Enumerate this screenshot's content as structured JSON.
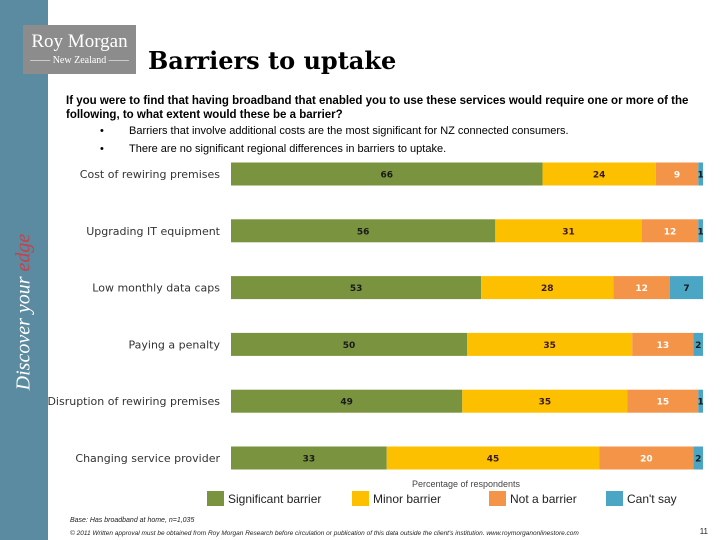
{
  "sidebar": {
    "tagline_prefix": "Discover your ",
    "tagline_highlight": "edge"
  },
  "logo": {
    "line1": "Roy Morgan",
    "line2": "New Zealand"
  },
  "title": "Barriers to uptake",
  "question": "If you were to find that having broadband that enabled you to use these services would require one or more of the following, to what extent would these be a barrier?",
  "bullets": [
    "Barriers that involve additional costs are the most significant for NZ connected consumers.",
    "There are no significant regional differences in barriers to uptake."
  ],
  "chart_data": {
    "type": "bar",
    "orientation": "horizontal",
    "stacked": true,
    "categories": [
      "Cost of rewiring premises",
      "Upgrading IT equipment",
      "Low monthly data caps",
      "Paying a penalty",
      "Disruption of rewiring premises",
      "Changing service provider"
    ],
    "series": [
      {
        "name": "Significant barrier",
        "color": "#7a933e",
        "values": [
          66,
          56,
          53,
          50,
          49,
          33
        ]
      },
      {
        "name": "Minor barrier",
        "color": "#fdc000",
        "values": [
          24,
          31,
          28,
          35,
          35,
          45
        ]
      },
      {
        "name": "Not a barrier",
        "color": "#f39449",
        "values": [
          9,
          12,
          12,
          13,
          15,
          20
        ]
      },
      {
        "name": "Can't say",
        "color": "#4aa6c4",
        "values": [
          1,
          1,
          7,
          2,
          1,
          2
        ]
      }
    ],
    "xlabel": "Percentage of respondents",
    "xlim": [
      0,
      100
    ],
    "grid": false,
    "legend": "bottom"
  },
  "footer": {
    "base": "Base: Has broadband at home, n=1,035",
    "copyright": "© 2011 Written approval must be obtained from Roy Morgan Research before circulation or publication of this data outside the client's institution. www.roymorganonlinestore.com",
    "page": "11"
  }
}
